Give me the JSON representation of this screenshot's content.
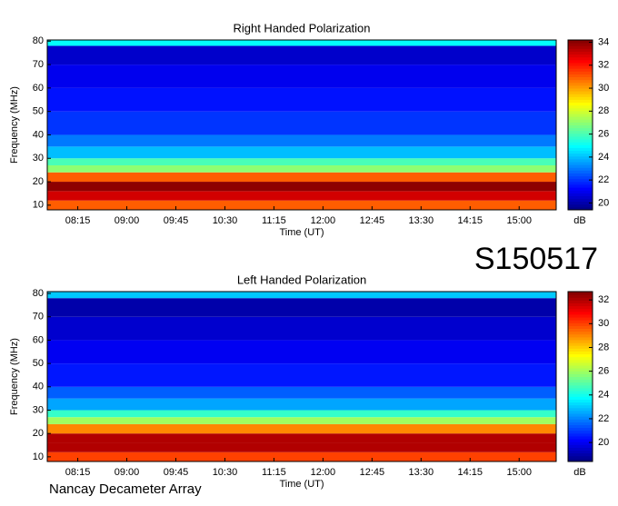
{
  "heading": "S150517",
  "footer": "Nancay Decameter Array",
  "chart_data": [
    {
      "type": "heatmap",
      "title": "Right Handed Polarization",
      "xlabel": "Time (UT)",
      "ylabel": "Frequency (MHz)",
      "colorbar_label": "dB",
      "xlim": [
        467,
        934
      ],
      "xticks": [
        {
          "value": 495,
          "label": "08:15"
        },
        {
          "value": 540,
          "label": "09:00"
        },
        {
          "value": 585,
          "label": "09:45"
        },
        {
          "value": 630,
          "label": "10:30"
        },
        {
          "value": 675,
          "label": "11:15"
        },
        {
          "value": 720,
          "label": "12:00"
        },
        {
          "value": 765,
          "label": "12:45"
        },
        {
          "value": 810,
          "label": "13:30"
        },
        {
          "value": 855,
          "label": "14:15"
        },
        {
          "value": 900,
          "label": "15:00"
        }
      ],
      "ylim": [
        8,
        80.5
      ],
      "yticks": [
        10,
        20,
        30,
        40,
        50,
        60,
        70,
        80
      ],
      "freq_bins": [
        8,
        12,
        16,
        20,
        24,
        27,
        30,
        35,
        40,
        50,
        60,
        70,
        78,
        80.5
      ],
      "values": [
        31,
        33,
        34,
        31,
        27,
        26,
        24,
        23,
        22,
        21.5,
        21,
        20.5,
        25
      ],
      "clim": [
        19.4,
        34.2
      ],
      "cticks": [
        20,
        22,
        24,
        26,
        28,
        30,
        32,
        34
      ]
    },
    {
      "type": "heatmap",
      "title": "Left Handed Polarization",
      "xlabel": "Time (UT)",
      "ylabel": "Frequency (MHz)",
      "colorbar_label": "dB",
      "xlim": [
        467,
        934
      ],
      "xticks": [
        {
          "value": 495,
          "label": "08:15"
        },
        {
          "value": 540,
          "label": "09:00"
        },
        {
          "value": 585,
          "label": "09:45"
        },
        {
          "value": 630,
          "label": "10:30"
        },
        {
          "value": 675,
          "label": "11:15"
        },
        {
          "value": 720,
          "label": "12:00"
        },
        {
          "value": 765,
          "label": "12:45"
        },
        {
          "value": 810,
          "label": "13:30"
        },
        {
          "value": 855,
          "label": "14:15"
        },
        {
          "value": 900,
          "label": "15:00"
        }
      ],
      "ylim": [
        8,
        80.8
      ],
      "yticks": [
        10,
        20,
        30,
        40,
        50,
        60,
        70,
        80
      ],
      "freq_bins": [
        8,
        12,
        16,
        20,
        24,
        27,
        30,
        35,
        40,
        50,
        60,
        70,
        78,
        80.8
      ],
      "values": [
        30,
        32,
        32,
        29,
        26,
        24.5,
        22.5,
        21.5,
        20.5,
        20,
        19.5,
        19,
        23
      ],
      "clim": [
        18.4,
        32.7
      ],
      "cticks": [
        20,
        22,
        24,
        26,
        28,
        30,
        32
      ]
    }
  ]
}
